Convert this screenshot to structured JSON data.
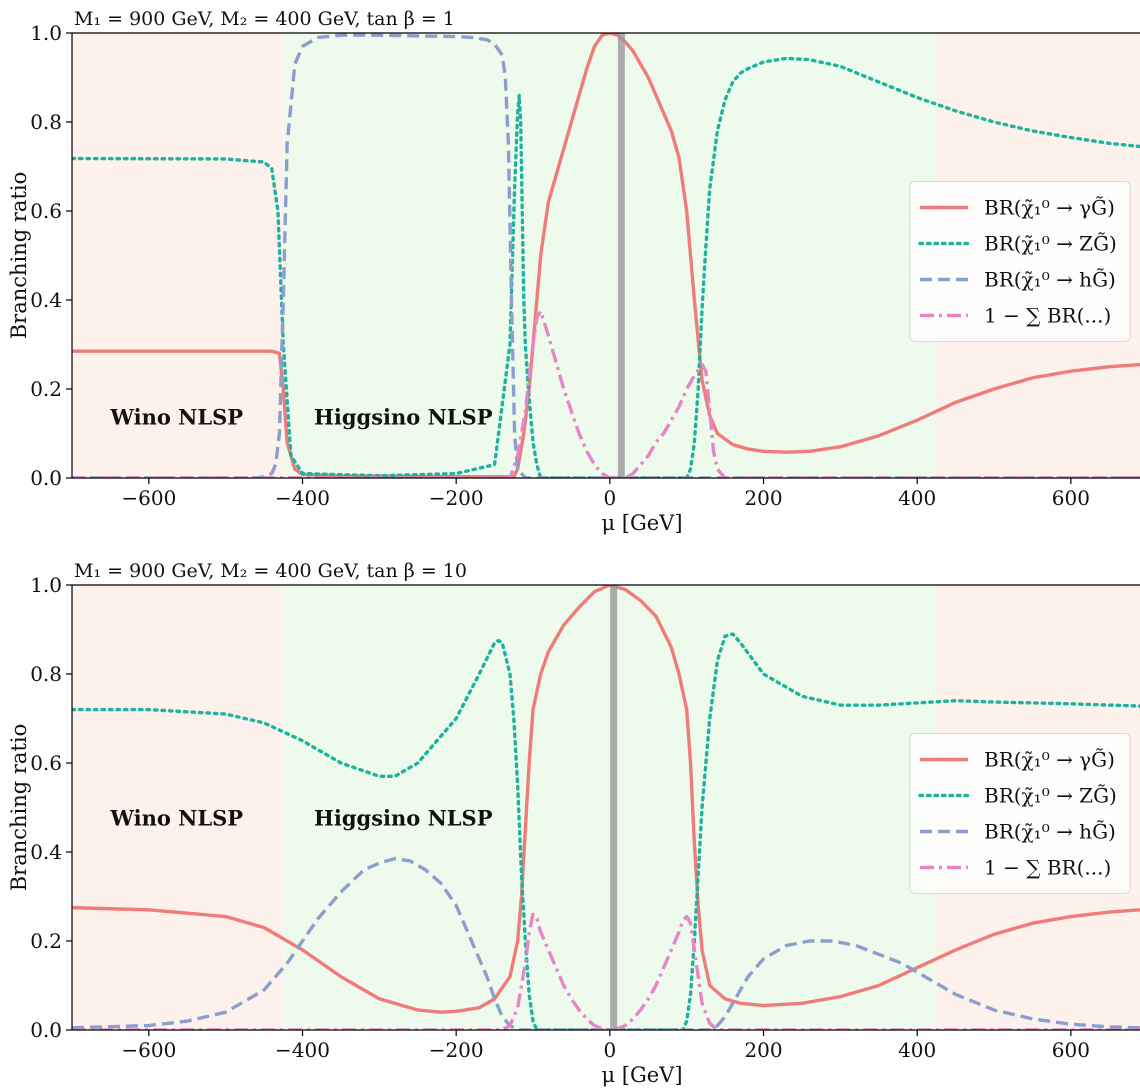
{
  "chart_data": [
    {
      "type": "line",
      "title": "M₁ = 900 GeV, M₂ = 400 GeV, tan β = 1",
      "xlabel": "μ [GeV]",
      "ylabel": "Branching ratio",
      "xlim": [
        -700,
        690
      ],
      "ylim": [
        0,
        1
      ],
      "xticks": [
        -600,
        -400,
        -200,
        0,
        200,
        400,
        600
      ],
      "xtick_labels": [
        "−600",
        "−400",
        "−200",
        "0",
        "200",
        "400",
        "600"
      ],
      "yticks": [
        0.0,
        0.2,
        0.4,
        0.6,
        0.8,
        1.0
      ],
      "ytick_labels": [
        "0.0",
        "0.2",
        "0.4",
        "0.6",
        "0.8",
        "1.0"
      ],
      "regions": [
        {
          "label": "Wino NLSP",
          "x0": -700,
          "x1": -425,
          "color": "#fdf1ec"
        },
        {
          "label": "Higgsino NLSP",
          "x0": -425,
          "x1": 425,
          "color": "#eefbec"
        },
        {
          "label": "",
          "x0": 425,
          "x1": 690,
          "color": "#fdf1ec"
        }
      ],
      "legend_position": "center-right",
      "series": [
        {
          "name": "BR(χ̃₁⁰ → γG̃)",
          "color": "#f07c7a",
          "dash": "solid",
          "x": [
            -700,
            -440,
            -430,
            -425,
            -420,
            -410,
            -400,
            -350,
            -200,
            -125,
            -120,
            -112,
            -105,
            -100,
            -90,
            -80,
            -70,
            -60,
            -50,
            -40,
            -30,
            -20,
            -10,
            0,
            10,
            20,
            30,
            40,
            50,
            60,
            70,
            80,
            90,
            100,
            110,
            120,
            130,
            140,
            160,
            180,
            200,
            230,
            260,
            300,
            350,
            400,
            450,
            500,
            550,
            600,
            650,
            690
          ],
          "y": [
            0.285,
            0.285,
            0.28,
            0.2,
            0.08,
            0.02,
            0.008,
            0.005,
            0.003,
            0.003,
            0.02,
            0.1,
            0.2,
            0.3,
            0.5,
            0.62,
            0.68,
            0.74,
            0.8,
            0.86,
            0.92,
            0.97,
            0.995,
            1.0,
            0.995,
            0.98,
            0.96,
            0.93,
            0.9,
            0.86,
            0.82,
            0.78,
            0.72,
            0.6,
            0.4,
            0.22,
            0.14,
            0.1,
            0.075,
            0.065,
            0.06,
            0.058,
            0.06,
            0.07,
            0.095,
            0.13,
            0.17,
            0.2,
            0.225,
            0.24,
            0.25,
            0.255
          ]
        },
        {
          "name": "BR(χ̃₁⁰ → ZG̃)",
          "color": "#20b2a0",
          "dash": "dotted",
          "x": [
            -700,
            -500,
            -450,
            -440,
            -432,
            -425,
            -415,
            -400,
            -300,
            -200,
            -150,
            -130,
            -124,
            -120,
            -118,
            -116,
            -114,
            -112,
            -110,
            -106,
            -100,
            -95,
            -90,
            100,
            105,
            110,
            115,
            120,
            125,
            130,
            140,
            150,
            160,
            170,
            180,
            200,
            230,
            260,
            300,
            350,
            400,
            450,
            500,
            550,
            600,
            650,
            690
          ],
          "y": [
            0.718,
            0.717,
            0.71,
            0.695,
            0.6,
            0.3,
            0.05,
            0.01,
            0.005,
            0.01,
            0.03,
            0.3,
            0.65,
            0.82,
            0.86,
            0.8,
            0.6,
            0.4,
            0.3,
            0.2,
            0.08,
            0.03,
            0.0,
            0.0,
            0.02,
            0.08,
            0.2,
            0.38,
            0.52,
            0.65,
            0.78,
            0.85,
            0.89,
            0.91,
            0.92,
            0.935,
            0.943,
            0.94,
            0.925,
            0.89,
            0.855,
            0.825,
            0.8,
            0.78,
            0.765,
            0.752,
            0.745
          ]
        },
        {
          "name": "BR(χ̃₁⁰ → hG̃)",
          "color": "#8b9fcf",
          "dash": "dashed",
          "x": [
            -700,
            -460,
            -450,
            -440,
            -435,
            -430,
            -425,
            -420,
            -410,
            -400,
            -380,
            -350,
            -300,
            -200,
            -180,
            -160,
            -150,
            -140,
            -136,
            -132,
            -128,
            -124,
            -120,
            -110,
            690
          ],
          "y": [
            0.0,
            0.0,
            0.003,
            0.01,
            0.03,
            0.1,
            0.4,
            0.75,
            0.93,
            0.97,
            0.99,
            0.995,
            0.995,
            0.992,
            0.99,
            0.985,
            0.975,
            0.95,
            0.9,
            0.75,
            0.4,
            0.1,
            0.02,
            0.0,
            0.0
          ]
        },
        {
          "name": "1 − ∑ BR(...)",
          "color": "#e884c8",
          "dash": "dashdot",
          "x": [
            -700,
            -130,
            -120,
            -110,
            -100,
            -95,
            -90,
            -80,
            -70,
            -60,
            -50,
            -40,
            -30,
            -20,
            -10,
            0,
            10,
            20,
            30,
            40,
            50,
            60,
            70,
            80,
            90,
            100,
            110,
            120,
            125,
            130,
            135,
            140,
            150,
            690
          ],
          "y": [
            0.0,
            0.0,
            0.05,
            0.15,
            0.3,
            0.36,
            0.375,
            0.32,
            0.26,
            0.2,
            0.15,
            0.1,
            0.06,
            0.03,
            0.01,
            0.0,
            0.0,
            0.0,
            0.01,
            0.03,
            0.05,
            0.08,
            0.1,
            0.13,
            0.16,
            0.2,
            0.23,
            0.255,
            0.24,
            0.15,
            0.06,
            0.02,
            0.0,
            0.0
          ]
        },
        {
          "name": "",
          "color": "#999999",
          "dash": "solid",
          "width_kind": "band",
          "x": [
            15,
            15
          ],
          "y": [
            0,
            1
          ]
        }
      ],
      "text_labels": [
        {
          "text": "Wino NLSP",
          "x": -650,
          "y": 0.12
        },
        {
          "text": "Higgsino NLSP",
          "x": -385,
          "y": 0.12
        }
      ]
    },
    {
      "type": "line",
      "title": "M₁ = 900 GeV, M₂ = 400 GeV, tan β = 10",
      "xlabel": "μ [GeV]",
      "ylabel": "Branching ratio",
      "xlim": [
        -700,
        690
      ],
      "ylim": [
        0,
        1
      ],
      "xticks": [
        -600,
        -400,
        -200,
        0,
        200,
        400,
        600
      ],
      "xtick_labels": [
        "−600",
        "−400",
        "−200",
        "0",
        "200",
        "400",
        "600"
      ],
      "yticks": [
        0.0,
        0.2,
        0.4,
        0.6,
        0.8,
        1.0
      ],
      "ytick_labels": [
        "0.0",
        "0.2",
        "0.4",
        "0.6",
        "0.8",
        "1.0"
      ],
      "regions": [
        {
          "label": "Wino NLSP",
          "x0": -700,
          "x1": -425,
          "color": "#fdf1ec"
        },
        {
          "label": "Higgsino NLSP",
          "x0": -425,
          "x1": 425,
          "color": "#eefbec"
        },
        {
          "label": "",
          "x0": 425,
          "x1": 690,
          "color": "#fdf1ec"
        }
      ],
      "legend_position": "center-right",
      "series": [
        {
          "name": "BR(χ̃₁⁰ → γG̃)",
          "color": "#f07c7a",
          "dash": "solid",
          "x": [
            -700,
            -600,
            -500,
            -450,
            -400,
            -350,
            -300,
            -250,
            -220,
            -200,
            -170,
            -150,
            -130,
            -120,
            -115,
            -110,
            -105,
            -100,
            -90,
            -80,
            -60,
            -40,
            -20,
            0,
            20,
            40,
            60,
            80,
            90,
            100,
            105,
            110,
            115,
            120,
            130,
            150,
            170,
            200,
            250,
            300,
            350,
            400,
            450,
            500,
            550,
            600,
            650,
            690
          ],
          "y": [
            0.275,
            0.27,
            0.255,
            0.23,
            0.18,
            0.12,
            0.07,
            0.045,
            0.04,
            0.042,
            0.05,
            0.07,
            0.12,
            0.2,
            0.3,
            0.45,
            0.6,
            0.72,
            0.8,
            0.85,
            0.91,
            0.95,
            0.985,
            1.0,
            0.99,
            0.965,
            0.93,
            0.86,
            0.8,
            0.72,
            0.6,
            0.42,
            0.28,
            0.18,
            0.1,
            0.07,
            0.06,
            0.055,
            0.06,
            0.075,
            0.1,
            0.14,
            0.18,
            0.215,
            0.24,
            0.255,
            0.265,
            0.27
          ]
        },
        {
          "name": "BR(χ̃₁⁰ → ZG̃)",
          "color": "#20b2a0",
          "dash": "dotted",
          "x": [
            -700,
            -600,
            -500,
            -450,
            -400,
            -350,
            -300,
            -280,
            -250,
            -200,
            -170,
            -150,
            -145,
            -140,
            -130,
            -125,
            -120,
            -115,
            -110,
            -105,
            -100,
            -95,
            95,
            100,
            105,
            110,
            115,
            120,
            130,
            140,
            150,
            160,
            170,
            200,
            250,
            300,
            350,
            400,
            450,
            500,
            550,
            600,
            650,
            690
          ],
          "y": [
            0.72,
            0.72,
            0.71,
            0.69,
            0.65,
            0.6,
            0.57,
            0.57,
            0.6,
            0.7,
            0.8,
            0.87,
            0.875,
            0.87,
            0.8,
            0.7,
            0.55,
            0.35,
            0.2,
            0.08,
            0.02,
            0.0,
            0.0,
            0.02,
            0.08,
            0.2,
            0.35,
            0.5,
            0.7,
            0.83,
            0.885,
            0.89,
            0.87,
            0.8,
            0.75,
            0.73,
            0.73,
            0.735,
            0.74,
            0.737,
            0.735,
            0.733,
            0.73,
            0.728
          ]
        },
        {
          "name": "BR(χ̃₁⁰ → hG̃)",
          "color": "#8b9fcf",
          "dash": "dashed",
          "x": [
            -700,
            -600,
            -550,
            -500,
            -450,
            -420,
            -400,
            -380,
            -350,
            -320,
            -300,
            -280,
            -260,
            -240,
            -220,
            -200,
            -180,
            -160,
            -150,
            -140,
            -130,
            -120,
            130,
            140,
            150,
            160,
            180,
            200,
            230,
            260,
            290,
            320,
            350,
            380,
            400,
            420,
            450,
            500,
            550,
            600,
            650,
            690
          ],
          "y": [
            0.005,
            0.01,
            0.02,
            0.04,
            0.09,
            0.15,
            0.2,
            0.25,
            0.31,
            0.36,
            0.375,
            0.385,
            0.38,
            0.36,
            0.33,
            0.28,
            0.2,
            0.12,
            0.07,
            0.03,
            0.01,
            0.0,
            0.0,
            0.01,
            0.03,
            0.06,
            0.12,
            0.16,
            0.19,
            0.2,
            0.2,
            0.19,
            0.17,
            0.15,
            0.13,
            0.11,
            0.08,
            0.045,
            0.025,
            0.013,
            0.007,
            0.005
          ]
        },
        {
          "name": "1 − ∑ BR(...)",
          "color": "#e884c8",
          "dash": "dashdot",
          "x": [
            -700,
            -140,
            -130,
            -120,
            -110,
            -105,
            -100,
            -95,
            -90,
            -80,
            -70,
            -60,
            -50,
            -40,
            -30,
            -20,
            -10,
            0,
            10,
            20,
            30,
            40,
            50,
            60,
            70,
            80,
            90,
            95,
            100,
            105,
            110,
            120,
            130,
            140,
            690
          ],
          "y": [
            0.0,
            0.0,
            0.01,
            0.05,
            0.15,
            0.22,
            0.26,
            0.25,
            0.22,
            0.18,
            0.14,
            0.1,
            0.07,
            0.045,
            0.025,
            0.01,
            0.003,
            0.0,
            0.003,
            0.01,
            0.025,
            0.045,
            0.07,
            0.1,
            0.14,
            0.18,
            0.22,
            0.245,
            0.255,
            0.24,
            0.18,
            0.06,
            0.015,
            0.0,
            0.0
          ]
        },
        {
          "name": "",
          "color": "#999999",
          "dash": "solid",
          "width_kind": "band",
          "x": [
            5,
            5
          ],
          "y": [
            0,
            1
          ]
        }
      ],
      "text_labels": [
        {
          "text": "Wino NLSP",
          "x": -650,
          "y": 0.46
        },
        {
          "text": "Higgsino NLSP",
          "x": -385,
          "y": 0.46
        }
      ]
    }
  ]
}
